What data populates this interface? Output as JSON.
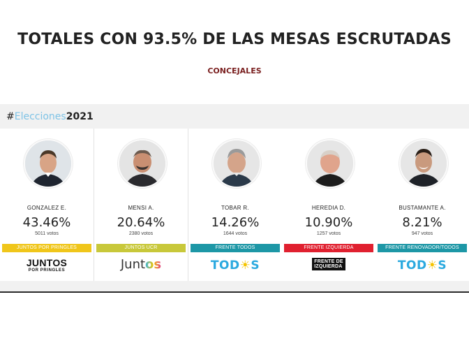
{
  "headline": "TOTALES CON 93.5% DE LAS MESAS ESCRUTADAS",
  "subheadline": "CONCEJALES",
  "widget": {
    "hashtag_prefix": "#",
    "hashtag_main": "Elecciones",
    "hashtag_year": "2021"
  },
  "candidates": [
    {
      "name": "GONZALEZ E.",
      "percent": "43.46%",
      "votes": "5011 votos",
      "party": "JUNTOS POR PRINGLES",
      "party_color": "#f0c61a",
      "logo_main": "JUNTOS",
      "logo_sub": "POR PRINGLES"
    },
    {
      "name": "MENSI A.",
      "percent": "20.64%",
      "votes": "2380 votos",
      "party": "JUNTOS UCR",
      "party_color": "#c8c83a",
      "logo_main": "Junt",
      "logo_sub": "os"
    },
    {
      "name": "TOBAR R.",
      "percent": "14.26%",
      "votes": "1644 votos",
      "party": "FRENTE TODOS",
      "party_color": "#1d97a6",
      "logo_main": "TOD",
      "logo_sub": "S"
    },
    {
      "name": "HEREDIA D.",
      "percent": "10.90%",
      "votes": "1257 votos",
      "party": "FRENTE IZQUIERDA",
      "party_color": "#e0202f",
      "logo_main": "FRENTE DE",
      "logo_sub": "IZQUIERDA"
    },
    {
      "name": "BUSTAMANTE A.",
      "percent": "8.21%",
      "votes": "947 votos",
      "party": "FRENTE RENOVADOR/TODOS",
      "party_color": "#1d97a6",
      "logo_main": "TOD",
      "logo_sub": "S"
    }
  ]
}
